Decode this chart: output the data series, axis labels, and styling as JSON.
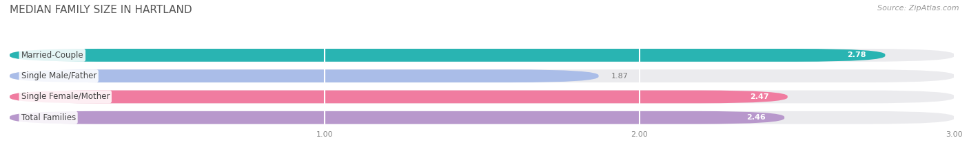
{
  "title": "MEDIAN FAMILY SIZE IN HARTLAND",
  "source": "Source: ZipAtlas.com",
  "categories": [
    "Married-Couple",
    "Single Male/Father",
    "Single Female/Mother",
    "Total Families"
  ],
  "values": [
    2.78,
    1.87,
    2.47,
    2.46
  ],
  "bar_colors": [
    "#29b4b2",
    "#aabde8",
    "#f07ca0",
    "#b898cc"
  ],
  "bg_colors": [
    "#e8e8ec",
    "#e8e8ec",
    "#e8e8ec",
    "#e8e8ec"
  ],
  "xlim_max": 3.0,
  "xticks": [
    1.0,
    2.0,
    3.0
  ],
  "xtick_labels": [
    "1.00",
    "2.00",
    "3.00"
  ],
  "background_color": "#ffffff",
  "bar_height": 0.62,
  "title_fontsize": 11,
  "label_fontsize": 8.5,
  "value_fontsize": 8.0,
  "source_fontsize": 8,
  "title_color": "#555555",
  "source_color": "#999999",
  "grid_color": "#e0e0e0",
  "label_text_color": "#444444",
  "value_color_inside": "white",
  "value_color_outside": "#777777"
}
